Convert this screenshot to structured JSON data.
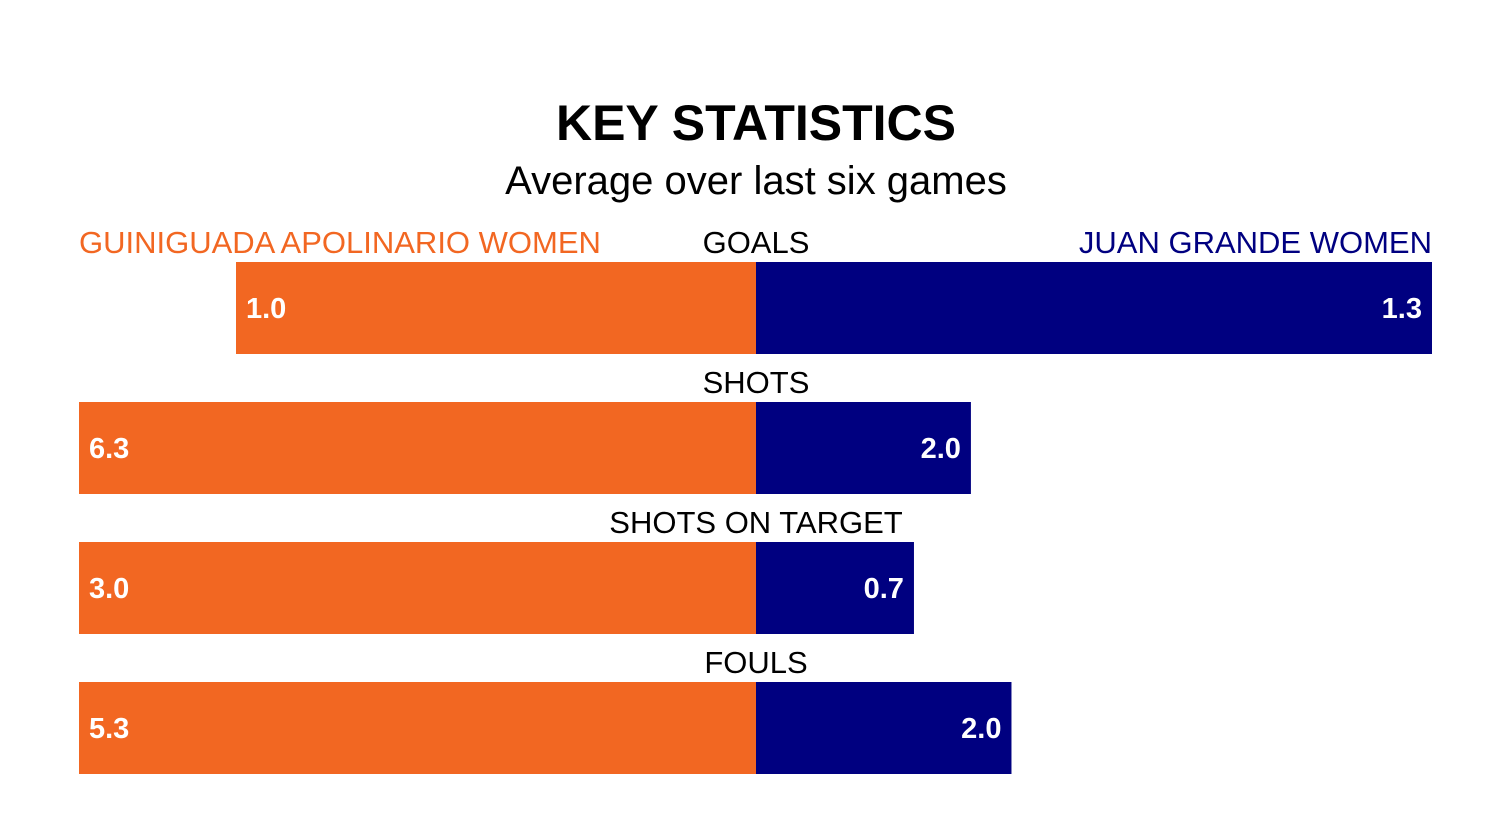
{
  "header": {
    "title": "KEY STATISTICS",
    "subtitle": "Average over last six games"
  },
  "teams": {
    "left": {
      "name": "GUINIGUADA APOLINARIO WOMEN",
      "color": "#F26722"
    },
    "right": {
      "name": "JUAN GRANDE WOMEN",
      "color": "#000080"
    }
  },
  "chart_data": {
    "type": "bar",
    "orientation": "diverging-horizontal",
    "categories": [
      "GOALS",
      "SHOTS",
      "SHOTS ON TARGET",
      "FOULS"
    ],
    "series": [
      {
        "name": "GUINIGUADA APOLINARIO WOMEN",
        "values": [
          1.0,
          6.3,
          3.0,
          5.3
        ],
        "labels": [
          "1.0",
          "6.3",
          "3.0",
          "5.3"
        ],
        "color": "#F26722"
      },
      {
        "name": "JUAN GRANDE WOMEN",
        "values": [
          1.3,
          2.0,
          0.7,
          2.0
        ],
        "labels": [
          "1.3",
          "2.0",
          "0.7",
          "2.0"
        ],
        "color": "#000080"
      }
    ]
  }
}
